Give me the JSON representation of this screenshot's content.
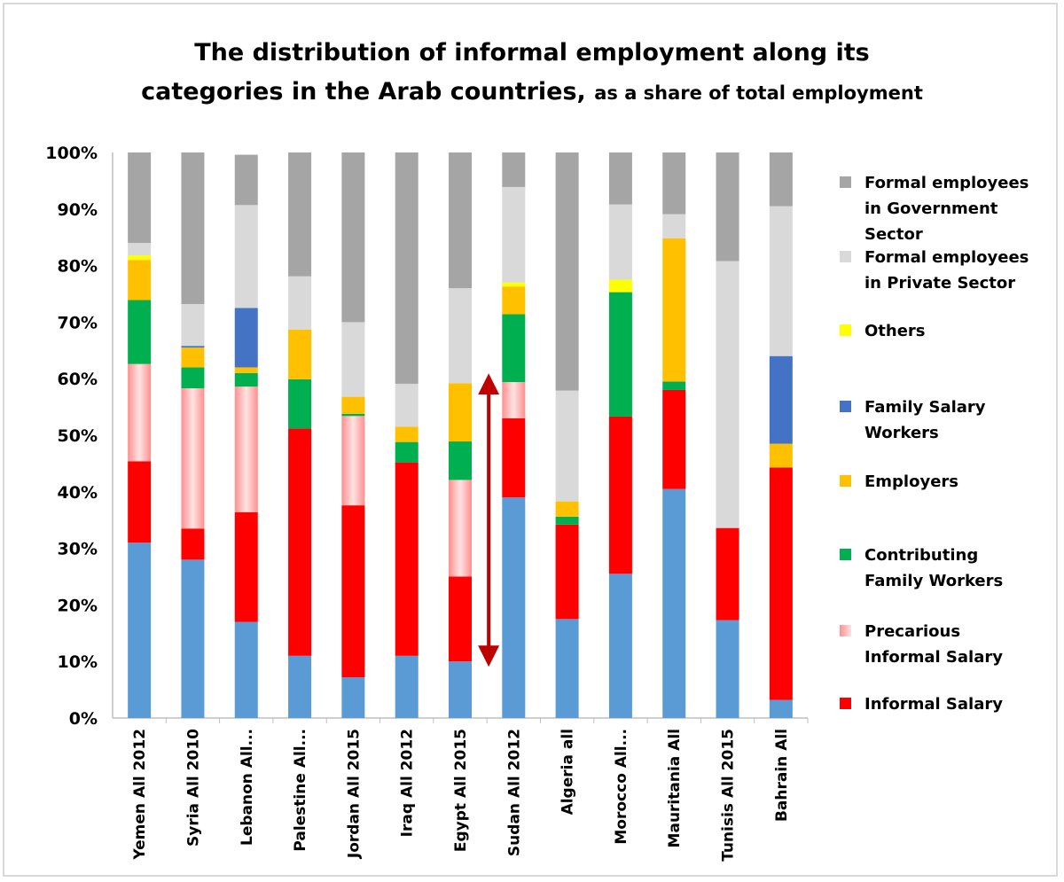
{
  "chart_data": {
    "type": "bar",
    "stacked": true,
    "title_line1": "The distribution of informal employment along its",
    "title_line2": "categories in the Arab countries,",
    "subtitle": "as a share of total employment",
    "xlabel": "",
    "ylabel": "",
    "ylim": [
      0,
      100
    ],
    "y_ticks": [
      "0%",
      "10%",
      "20%",
      "30%",
      "40%",
      "50%",
      "60%",
      "70%",
      "80%",
      "90%",
      "100%"
    ],
    "legend_position": "right",
    "categories": [
      "Yemen All 2012",
      "Syria All 2010",
      "Lebanon All...",
      "Palestine All...",
      "Jordan All 2015",
      "Iraq All 2012",
      "Egypt All 2015",
      "Sudan All 2012",
      "Algeria all",
      "Morocco All...",
      "Mauritania All",
      "Tunisis All 2015",
      "Bahrain All"
    ],
    "series": [
      {
        "color": "#5b9bd5",
        "values": [
          31,
          28,
          17,
          11,
          7.2,
          11,
          10,
          39,
          17.5,
          25.5,
          40.5,
          17.3,
          3.2
        ]
      },
      {
        "name": "Informal Salary",
        "color": "#ff0000",
        "values": [
          14.4,
          5.5,
          19.4,
          40.2,
          30.4,
          34.2,
          15,
          14,
          16.7,
          27.8,
          17.5,
          16.3,
          41.1
        ]
      },
      {
        "name": "Precarious Informal Salary",
        "color": "#ff9d9d",
        "gradient": true,
        "values": [
          17.2,
          24.8,
          22.2,
          0,
          15.8,
          0,
          17.1,
          6.4,
          0,
          0,
          0,
          0,
          0
        ]
      },
      {
        "name": "Contributing Family Workers",
        "color": "#00b050",
        "values": [
          11.3,
          3.7,
          2.4,
          8.7,
          0.4,
          3.6,
          6.8,
          12,
          1.4,
          22,
          1.5,
          0,
          0
        ]
      },
      {
        "name": "Employers",
        "color": "#ffc000",
        "values": [
          7.1,
          3.5,
          1.0,
          8.8,
          3,
          2.7,
          10.3,
          4.9,
          2.7,
          0,
          25.3,
          0,
          4.2
        ]
      },
      {
        "name": "Others",
        "color": "#ffff00",
        "values": [
          0.8,
          0,
          0,
          0,
          0,
          0,
          0,
          0.7,
          0,
          2.2,
          0,
          0,
          0
        ]
      },
      {
        "name": "Family Salary Workers",
        "color": "#4472c4",
        "values": [
          0,
          0.3,
          10.5,
          0,
          0,
          0,
          0,
          0,
          0,
          0,
          0,
          0,
          15.5
        ]
      },
      {
        "name": "Formal employees in Private Sector",
        "color": "#d9d9d9",
        "values": [
          2.2,
          7.4,
          18.2,
          9.4,
          13.2,
          7.6,
          16.8,
          16.9,
          19.6,
          13.3,
          4.3,
          47.2,
          26.5
        ]
      },
      {
        "name": "Formal employees in Government Sector",
        "color": "#a5a5a5",
        "values": [
          16,
          26.8,
          8.9,
          21.9,
          30,
          40.9,
          24,
          6.1,
          42.1,
          9.2,
          10.9,
          19.2,
          9.5
        ]
      }
    ],
    "legend": [
      {
        "lines": [
          "Formal employees",
          "in Government",
          "Sector"
        ],
        "color": "#a5a5a5"
      },
      {
        "lines": [
          "Formal employees",
          "in Private Sector"
        ],
        "color": "#d9d9d9"
      },
      {
        "lines": [
          "Others"
        ],
        "color": "#ffff00"
      },
      {
        "lines": [
          "Family Salary",
          "Workers"
        ],
        "color": "#4472c4"
      },
      {
        "lines": [
          "Employers"
        ],
        "color": "#ffc000"
      },
      {
        "lines": [
          "Contributing",
          "Family Workers"
        ],
        "color": "#00b050"
      },
      {
        "lines": [
          "Precarious",
          "Informal Salary"
        ],
        "color": "#ff9d9d",
        "gradient": true
      },
      {
        "lines": [
          "Informal Salary"
        ],
        "color": "#ff0000"
      }
    ],
    "annotation": {
      "type": "double-arrow",
      "color": "#c00000",
      "category": "Egypt All 2015",
      "from": 10,
      "to": 60
    }
  }
}
